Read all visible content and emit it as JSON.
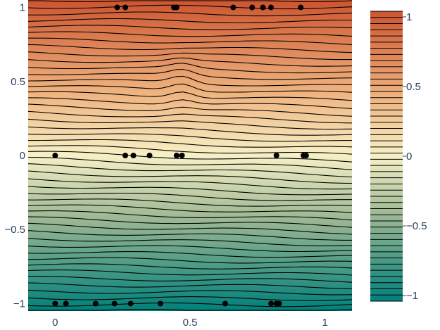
{
  "chart_data": {
    "type": "contour",
    "title": "",
    "xlabel": "",
    "ylabel": "",
    "xlim": [
      -0.1,
      1.1
    ],
    "ylim": [
      -1.05,
      1.05
    ],
    "x_ticks": [
      "0",
      "0.5",
      "1"
    ],
    "x_tick_values": [
      0,
      0.5,
      1
    ],
    "y_ticks": [
      "1",
      "0.5",
      "0",
      "−0.5",
      "−1"
    ],
    "y_tick_values": [
      1,
      0.5,
      0,
      -0.5,
      -1
    ],
    "colorbar": {
      "tick_labels": [
        "1",
        "0.5",
        "0",
        "−0.5",
        "−1"
      ],
      "tick_values": [
        1,
        0.5,
        0,
        -0.5,
        -1
      ],
      "range": [
        -1.04,
        1.04
      ],
      "colorscale": [
        [
          0.0,
          "#00807a"
        ],
        [
          0.3,
          "#9eb894"
        ],
        [
          0.5,
          "#f7f0c6"
        ],
        [
          0.7,
          "#efb47f"
        ],
        [
          1.0,
          "#cc5530"
        ]
      ]
    },
    "contour_line_color": "#000000",
    "n_contour_levels": 48,
    "points": {
      "color": "#000000",
      "x": [
        0.23,
        0.26,
        0.44,
        0.45,
        0.66,
        0.73,
        0.77,
        0.8,
        0.91,
        0.0,
        0.26,
        0.29,
        0.35,
        0.45,
        0.47,
        0.82,
        0.92,
        0.93,
        0.0,
        0.04,
        0.15,
        0.22,
        0.28,
        0.39,
        0.63,
        0.8,
        0.82,
        0.83
      ],
      "y": [
        1,
        1,
        1,
        1,
        1,
        1,
        1,
        1,
        1,
        0,
        0,
        0,
        0,
        0,
        0,
        0,
        0,
        0,
        -1,
        -1,
        -1,
        -1,
        -1,
        -1,
        -1,
        -1,
        -1,
        -1
      ]
    }
  }
}
